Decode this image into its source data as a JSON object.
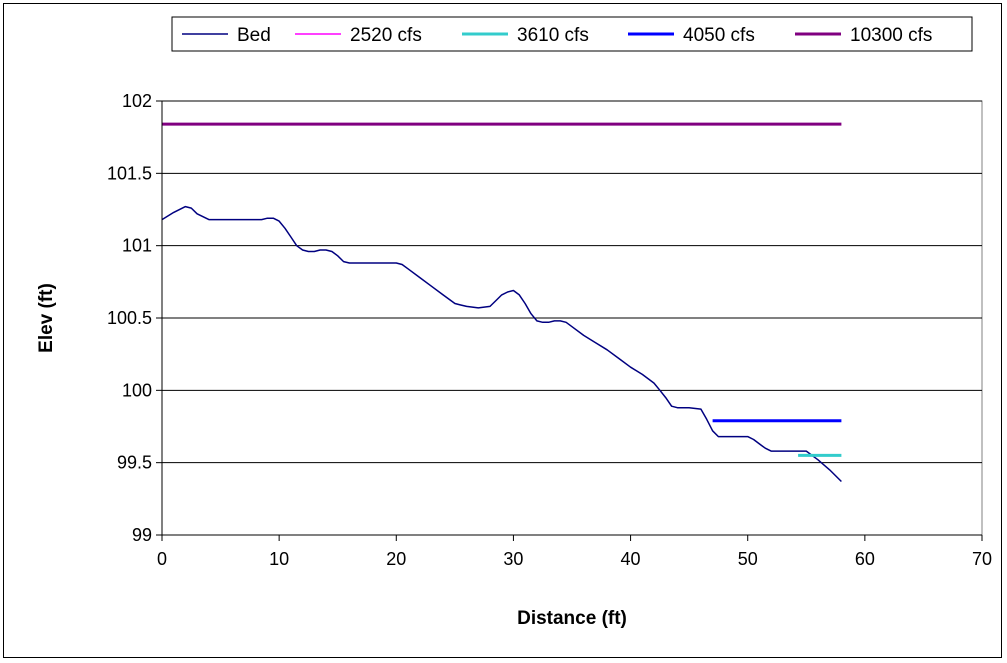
{
  "chart_data": {
    "type": "line",
    "xlabel": "Distance (ft)",
    "ylabel": "Elev (ft)",
    "xlim": [
      0,
      70
    ],
    "ylim": [
      99,
      102
    ],
    "xticks": [
      0,
      10,
      20,
      30,
      40,
      50,
      60,
      70
    ],
    "yticks": [
      99,
      99.5,
      100,
      100.5,
      101,
      101.5,
      102
    ],
    "ytick_labels": [
      "99",
      "99.5",
      "100",
      "100.5",
      "101",
      "101.5",
      "102"
    ],
    "grid": "horizontal",
    "legend_position": "top",
    "series": [
      {
        "name": "Bed",
        "color": "#000080",
        "width": 1.5,
        "x": [
          0,
          1,
          2,
          2.5,
          3,
          4,
          5,
          6,
          7,
          8,
          8.5,
          9,
          9.5,
          10,
          10.5,
          11,
          11.5,
          12,
          12.5,
          13,
          13.5,
          14,
          14.5,
          15,
          15.5,
          16,
          17,
          18,
          19,
          20,
          20.5,
          21,
          22,
          23,
          24,
          25,
          25.5,
          26,
          27,
          28,
          28.5,
          29,
          29.5,
          30,
          30.5,
          31,
          31.5,
          32,
          32.5,
          33,
          33.5,
          34,
          34.5,
          35,
          36,
          37,
          38,
          39,
          40,
          41,
          42,
          42.5,
          43,
          43.5,
          44,
          44.5,
          45,
          46,
          46.5,
          47,
          47.5,
          48,
          49,
          50,
          50.5,
          51,
          51.5,
          52,
          53,
          54,
          55,
          56,
          57,
          58
        ],
        "y": [
          101.18,
          101.23,
          101.27,
          101.26,
          101.22,
          101.18,
          101.18,
          101.18,
          101.18,
          101.18,
          101.18,
          101.19,
          101.19,
          101.17,
          101.12,
          101.06,
          101.0,
          100.97,
          100.96,
          100.96,
          100.97,
          100.97,
          100.96,
          100.93,
          100.89,
          100.88,
          100.88,
          100.88,
          100.88,
          100.88,
          100.87,
          100.84,
          100.78,
          100.72,
          100.66,
          100.6,
          100.59,
          100.58,
          100.57,
          100.58,
          100.62,
          100.66,
          100.68,
          100.69,
          100.66,
          100.6,
          100.53,
          100.48,
          100.47,
          100.47,
          100.48,
          100.48,
          100.47,
          100.44,
          100.38,
          100.33,
          100.28,
          100.22,
          100.16,
          100.11,
          100.05,
          100.0,
          99.95,
          99.89,
          99.88,
          99.88,
          99.88,
          99.87,
          99.8,
          99.72,
          99.68,
          99.68,
          99.68,
          99.68,
          99.66,
          99.63,
          99.6,
          99.58,
          99.58,
          99.58,
          99.58,
          99.52,
          99.45,
          99.37
        ]
      },
      {
        "name": "2520 cfs",
        "color": "#FF00FF",
        "width": 1.5,
        "x": [],
        "y": []
      },
      {
        "name": "3610 cfs",
        "color": "#33CCCC",
        "width": 3,
        "x": [
          54.3,
          58
        ],
        "y": [
          99.55,
          99.55
        ]
      },
      {
        "name": "4050 cfs",
        "color": "#0000FF",
        "width": 3,
        "x": [
          47,
          58
        ],
        "y": [
          99.79,
          99.79
        ]
      },
      {
        "name": "10300 cfs",
        "color": "#800080",
        "width": 3,
        "x": [
          0,
          58
        ],
        "y": [
          101.84,
          101.84
        ]
      }
    ]
  }
}
